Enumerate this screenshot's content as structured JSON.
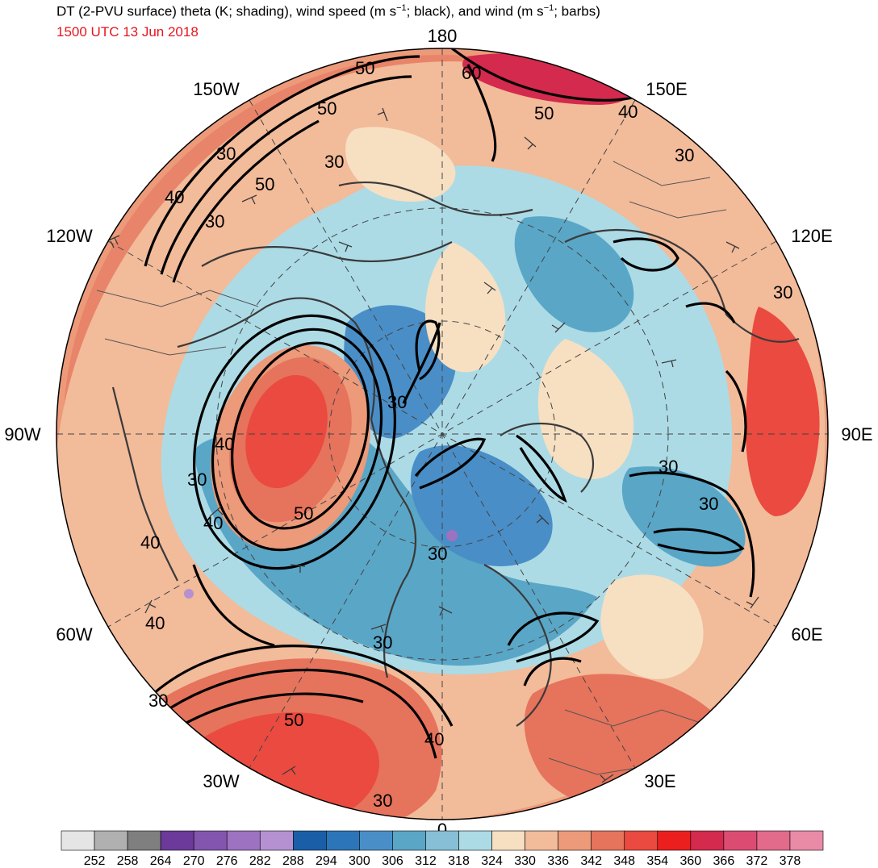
{
  "header": {
    "title_prefix": "DT (2-PVU surface) theta (K; shading), wind speed (m s",
    "title_sup1": "−1",
    "title_mid": "; black), and wind (m s",
    "title_sup2": "−1",
    "title_suffix": "; barbs)",
    "subtitle": "1500 UTC 13 Jun 2018",
    "subtitle_color": "#e8141c"
  },
  "map": {
    "projection": "north-polar-stereographic",
    "longitude_labels": {
      "top": "180",
      "upper_left": "150W",
      "upper_right": "150E",
      "mid_upper_left": "120W",
      "mid_upper_right": "120E",
      "left": "90W",
      "right": "90E",
      "mid_lower_left": "60W",
      "mid_lower_right": "60E",
      "lower_left": "30W",
      "lower_right": "30E",
      "bottom": "0"
    },
    "contour_labels": [
      "50",
      "50",
      "60",
      "50",
      "40",
      "30",
      "30",
      "50",
      "30",
      "40",
      "30",
      "30",
      "30",
      "40",
      "30",
      "50",
      "40",
      "30",
      "30",
      "30",
      "40",
      "40",
      "30",
      "50",
      "30",
      "40",
      "30"
    ]
  },
  "colorbar": {
    "unit": "K",
    "bins": [
      {
        "color": "#e5e5e5"
      },
      {
        "color": "#b0b0b0"
      },
      {
        "color": "#7f7f7f"
      },
      {
        "color": "#6c3a9a"
      },
      {
        "color": "#8455ae"
      },
      {
        "color": "#9d72c0"
      },
      {
        "color": "#b591d2"
      },
      {
        "color": "#1a5ea8"
      },
      {
        "color": "#2c75b8"
      },
      {
        "color": "#4a8ec7"
      },
      {
        "color": "#5aa6c6"
      },
      {
        "color": "#86bfd6"
      },
      {
        "color": "#acdbe6"
      },
      {
        "color": "#f7dfc2"
      },
      {
        "color": "#f2bb9a"
      },
      {
        "color": "#ec9a79"
      },
      {
        "color": "#e6735c"
      },
      {
        "color": "#ea4a3f"
      },
      {
        "color": "#ec1f1f"
      },
      {
        "color": "#d32a4d"
      },
      {
        "color": "#dc4c72"
      },
      {
        "color": "#e26a8b"
      },
      {
        "color": "#e98aa6"
      }
    ],
    "tick_labels": [
      "252",
      "258",
      "264",
      "270",
      "276",
      "282",
      "288",
      "294",
      "300",
      "306",
      "312",
      "318",
      "324",
      "330",
      "336",
      "342",
      "348",
      "354",
      "360",
      "366",
      "372",
      "378"
    ]
  }
}
